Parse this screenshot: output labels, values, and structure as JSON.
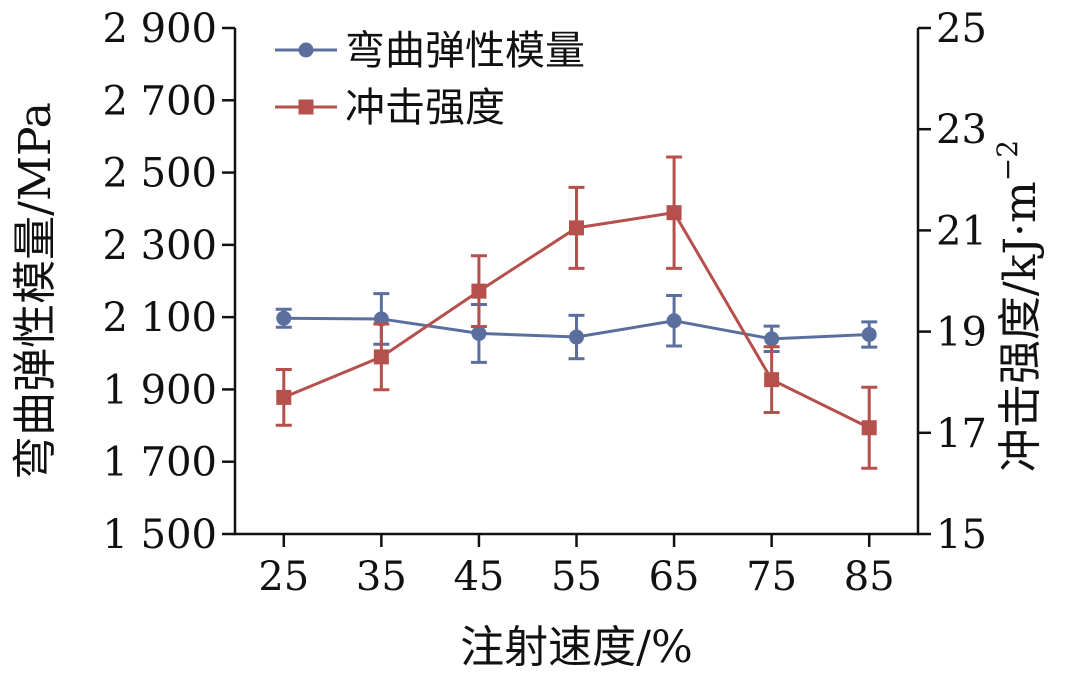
{
  "chart_data": {
    "type": "line",
    "xlabel": "注射速度/%",
    "x": [
      25,
      35,
      45,
      55,
      65,
      75,
      85
    ],
    "x_tick_labels": [
      "25",
      "35",
      "45",
      "55",
      "65",
      "75",
      "85"
    ],
    "y_left": {
      "label": "弯曲弹性模量/MPa",
      "range": [
        1500,
        2900
      ],
      "tick_values": [
        1500,
        1700,
        1900,
        2100,
        2300,
        2500,
        2700,
        2900
      ],
      "tick_labels": [
        "1 500",
        "1 700",
        "1 900",
        "2 100",
        "2 300",
        "2 500",
        "2 700",
        "2 900"
      ]
    },
    "y_right": {
      "label": "冲击强度/kJ·m",
      "label_superscript": "−2",
      "range": [
        15,
        25
      ],
      "tick_values": [
        15,
        17,
        19,
        21,
        23,
        25
      ],
      "tick_labels": [
        "15",
        "17",
        "19",
        "21",
        "23",
        "25"
      ]
    },
    "series": [
      {
        "name": "弯曲弹性模量",
        "axis": "left",
        "color": "#5b6f9f",
        "marker": "circle",
        "values": [
          2097,
          2095,
          2055,
          2045,
          2090,
          2040,
          2052
        ],
        "error": [
          25,
          70,
          80,
          60,
          70,
          35,
          35
        ]
      },
      {
        "name": "冲击强度",
        "axis": "right",
        "color": "#b5504c",
        "marker": "square",
        "values": [
          17.7,
          18.5,
          19.8,
          21.05,
          21.35,
          18.05,
          17.1
        ],
        "error": [
          0.55,
          0.65,
          0.7,
          0.8,
          1.1,
          0.65,
          0.8
        ]
      }
    ],
    "legend": {
      "placement": "top-left"
    },
    "grid": false
  }
}
